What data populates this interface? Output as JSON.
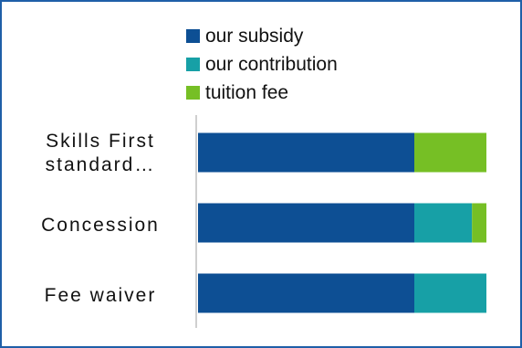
{
  "legend": {
    "items": [
      {
        "label": "our subsidy",
        "color": "#0d4f94"
      },
      {
        "label": "our contribution",
        "color": "#17a0a6"
      },
      {
        "label": "tuition fee",
        "color": "#76bf25"
      }
    ]
  },
  "chart_data": {
    "type": "bar",
    "orientation": "horizontal",
    "stacked": true,
    "categories": [
      "Skills First standard…",
      "Concession",
      "Fee waiver"
    ],
    "series": [
      {
        "name": "our subsidy",
        "color": "#0d4f94",
        "values": [
          75,
          75,
          75
        ]
      },
      {
        "name": "our contribution",
        "color": "#17a0a6",
        "values": [
          0,
          20,
          25
        ]
      },
      {
        "name": "tuition fee",
        "color": "#76bf25",
        "values": [
          25,
          5,
          0
        ]
      }
    ],
    "xlim": [
      0,
      100
    ],
    "title": "",
    "xlabel": "",
    "ylabel": "",
    "grid": false,
    "legend_position": "top"
  }
}
